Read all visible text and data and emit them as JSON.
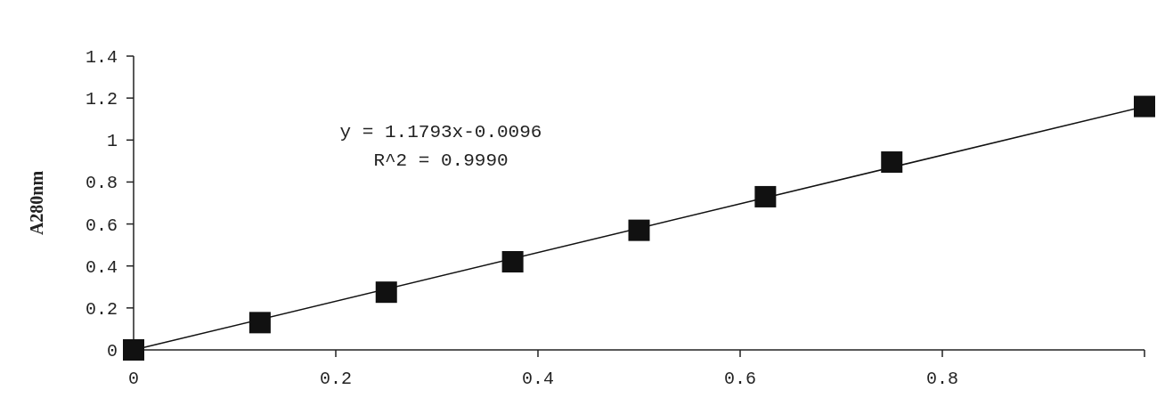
{
  "chart_data": {
    "type": "scatter",
    "ylabel": "A280nm",
    "xlim": [
      0,
      1
    ],
    "xticks": [
      0,
      0.2,
      0.4,
      0.6,
      0.8,
      {
        "value": 1,
        "label": null
      }
    ],
    "ylim": [
      0,
      1.4
    ],
    "yticks": [
      0,
      0.2,
      0.4,
      0.6,
      0.8,
      1,
      1.2,
      1.4
    ],
    "grid": false,
    "series": [
      {
        "color": "#111111",
        "marker": "square",
        "x": [
          0,
          0.125,
          0.25,
          0.375,
          0.5,
          0.625,
          0.75,
          1
        ],
        "values": [
          0,
          0.13,
          0.275,
          0.42,
          0.57,
          0.73,
          0.895,
          1.16
        ]
      },
      {
        "type": "line",
        "color": "#111111",
        "marker": "none",
        "x": [
          0,
          1
        ],
        "values": [
          0,
          1.16
        ]
      }
    ],
    "annotations": [
      "y = 1.1793x-0.0096",
      "R^2 = 0.9990"
    ]
  }
}
